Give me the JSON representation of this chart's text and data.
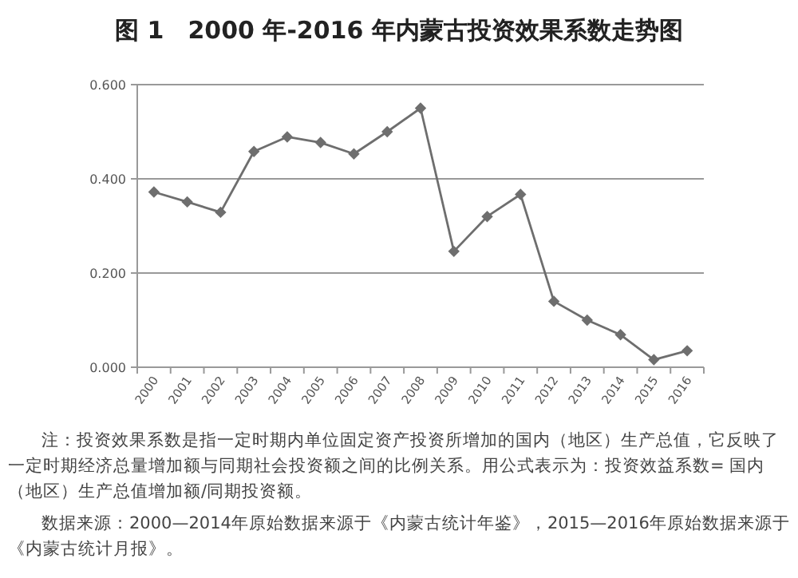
{
  "chart_data": {
    "type": "line",
    "title": "图 1　2000 年-2016 年内蒙古投资效果系数走势图",
    "categories": [
      "2000",
      "2001",
      "2002",
      "2003",
      "2004",
      "2005",
      "2006",
      "2007",
      "2008",
      "2009",
      "2010",
      "2011",
      "2012",
      "2013",
      "2014",
      "2015",
      "2016"
    ],
    "series": [
      {
        "color": "#6e6e6e",
        "values": [
          0.372,
          0.351,
          0.329,
          0.458,
          0.489,
          0.477,
          0.453,
          0.5,
          0.55,
          0.246,
          0.32,
          0.367,
          0.14,
          0.1,
          0.069,
          0.016,
          0.035
        ]
      }
    ],
    "ylim": [
      0,
      0.6
    ],
    "yticks": [
      {
        "value": 0,
        "label": "0.000"
      },
      {
        "value": 0.2,
        "label": "0.200"
      },
      {
        "value": 0.4,
        "label": "0.400"
      },
      {
        "value": 0.6,
        "label": "0.600"
      }
    ],
    "grid": "y",
    "marker": "diamond",
    "line_style": "solid",
    "annotations": [
      "注：投资效果系数是指一定时期内单位固定资产投资所增加的国内（地区）生产总值，它反映了一定时期经济总量增加额与同期社会投资额之间的比例关系。用公式表示为：投资效益系数= 国内（地区）生产总值增加额/同期投资额。",
      "数据来源：2000—2014年原始数据来源于《内蒙古统计年鉴》，2015—2016年原始数据来源于《内蒙古统计月报》。"
    ]
  }
}
